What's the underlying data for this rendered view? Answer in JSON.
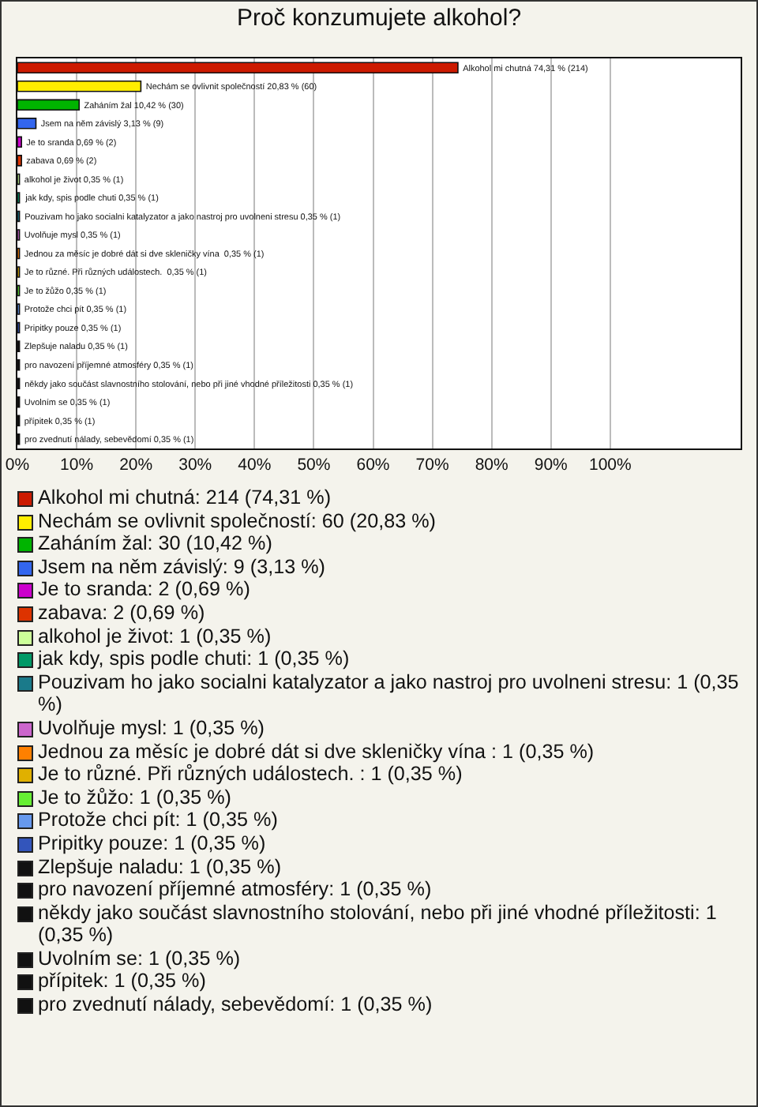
{
  "chart_data": {
    "type": "bar",
    "orientation": "horizontal",
    "title": "Proč konzumujete alkohol?",
    "categories": [
      null,
      null,
      null,
      null,
      null,
      null,
      null,
      null,
      null,
      null,
      null,
      null,
      null,
      null,
      null,
      null,
      null,
      null,
      null,
      null,
      null
    ],
    "values": [
      74.31,
      20.83,
      10.42,
      3.13,
      0.69,
      0.69,
      0.35,
      0.35,
      0.35,
      0.35,
      0.35,
      0.35,
      0.35,
      0.35,
      0.35,
      0.35,
      0.35,
      0.35,
      0.35,
      0.35,
      0.35
    ],
    "colors": [
      "#cc1a00",
      "#ffee00",
      "#00b400",
      "#3366ee",
      "#cc00cc",
      "#dd3300",
      "#ccff99",
      "#009966",
      "#1a7a8a",
      "#cc66cc",
      "#ff8000",
      "#e0b000",
      "#66ee33",
      "#6699ee",
      "#3355bb",
      "#111111",
      "#111111",
      "#111111",
      "#111111",
      "#111111",
      "#111111"
    ],
    "value_labels": [
      "Alkohol mi chutná 74,31 % (214)",
      "Nechám se ovlivnit společností 20,83 % (60)",
      "Zaháním žal 10,42 % (30)",
      "Jsem na něm závislý 3,13 % (9)",
      "Je to sranda 0,69 % (2)",
      "zabava 0,69 % (2)",
      "alkohol je život 0,35 % (1)",
      "jak kdy, spis podle chuti 0,35 % (1)",
      "Pouzivam ho jako socialni katalyzator a jako nastroj pro uvolneni stresu 0,35 % (1)",
      "Uvolňuje mysl 0,35 % (1)",
      "Jednou za měsíc je dobré dát si dve skleničky vína  0,35 % (1)",
      "Je to různé. Při různých událostech.  0,35 % (1)",
      "Je to žůžo 0,35 % (1)",
      "Protože chci pít 0,35 % (1)",
      "Pripitky pouze 0,35 % (1)",
      "Zlepšuje naladu 0,35 % (1)",
      "pro navození příjemné atmosféry 0,35 % (1)",
      "někdy jako součást slavnostního stolování, nebo při jiné vhodné příležitosti 0,35 % (1)",
      "Uvolním se 0,35 % (1)",
      "přípitek 0,35 % (1)",
      "pro zvednutí nálady, sebevědomí 0,35 % (1)"
    ],
    "xlim": [
      0,
      122
    ],
    "xticks": [
      {
        "value": 0,
        "label": "0%"
      },
      {
        "value": 10,
        "label": "10%"
      },
      {
        "value": 20,
        "label": "20%"
      },
      {
        "value": 30,
        "label": "30%"
      },
      {
        "value": 40,
        "label": "40%"
      },
      {
        "value": 50,
        "label": "50%"
      },
      {
        "value": 60,
        "label": "60%"
      },
      {
        "value": 70,
        "label": "70%"
      },
      {
        "value": 80,
        "label": "80%"
      },
      {
        "value": 90,
        "label": "90%"
      },
      {
        "value": 100,
        "label": "100%"
      }
    ],
    "grid": "x",
    "tick_labels": "x",
    "annotations": [
      "Alkohol mi chutná: 214 (74,31 %)",
      "Nechám se ovlivnit společností: 60 (20,83 %)",
      "Zaháním žal: 30 (10,42 %)",
      "Jsem na něm závislý: 9 (3,13 %)",
      "Je to sranda: 2 (0,69 %)",
      "zabava: 2 (0,69 %)",
      "alkohol je život: 1 (0,35 %)",
      "jak kdy, spis podle chuti: 1 (0,35 %)",
      "Pouzivam ho jako socialni katalyzator a jako nastroj pro uvolneni stresu: 1 (0,35 %)",
      "Uvolňuje mysl: 1 (0,35 %)",
      "Jednou za měsíc je dobré dát si dve skleničky vína : 1 (0,35 %)",
      "Je to různé. Při různých událostech. : 1 (0,35 %)",
      "Je to žůžo: 1 (0,35 %)",
      "Protože chci pít: 1 (0,35 %)",
      "Pripitky pouze: 1 (0,35 %)",
      "Zlepšuje naladu: 1 (0,35 %)",
      "pro navození příjemné atmosféry: 1 (0,35 %)",
      "někdy jako součást slavnostního stolování, nebo při jiné vhodné příležitosti: 1 (0,35 %)",
      "Uvolním se: 1 (0,35 %)",
      "přípitek: 1 (0,35 %)",
      "pro zvednutí nálady, sebevědomí: 1 (0,35 %)"
    ]
  }
}
